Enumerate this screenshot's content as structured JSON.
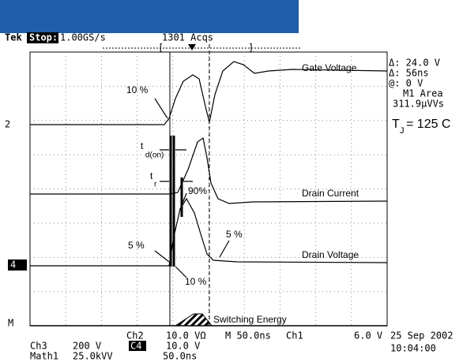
{
  "header": {
    "brand": "Tek",
    "state": "Stop:",
    "rate": "1.00GS/s",
    "acqs": "1301 Acqs"
  },
  "channel_markers": {
    "ch2": "2",
    "ch4": "4",
    "math": "M"
  },
  "traces": {
    "gate": "Gate Voltage",
    "current": "Drain Current",
    "voltage": "Drain Voltage",
    "energy": "Switching Energy"
  },
  "annotations": {
    "gate_10": "10 %",
    "td": "t",
    "td_sub": "d(on)",
    "tr": "t",
    "tr_sub": "r",
    "i_90": "90%",
    "v_5_left": "5 %",
    "v_5_right": "5 %",
    "v_10": "10 %"
  },
  "readout": {
    "delta_v": "Δ: 24.0 V",
    "delta_t": "Δ: 56ns",
    "at": "@: 0 V",
    "area_label": "M1 Area",
    "area": "311.9μVVs",
    "tj_t": "T",
    "tj_sub": "J",
    "tj_rest": " = 125 C"
  },
  "footer": {
    "ch2": "Ch2",
    "ch2_scale": "10.0 VΩ",
    "timebase": "M 50.0ns",
    "trig_ch": "Ch1",
    "trig_level": "6.0 V",
    "ch3": "Ch3",
    "ch3_scale": "200 V",
    "ch4": "C4",
    "ch4_scale": "10.0 V",
    "math": "Math1",
    "math_scale": "25.0kVV",
    "math_time": "50.0ns",
    "date": "25 Sep 2002",
    "time": "10:04:00"
  }
}
